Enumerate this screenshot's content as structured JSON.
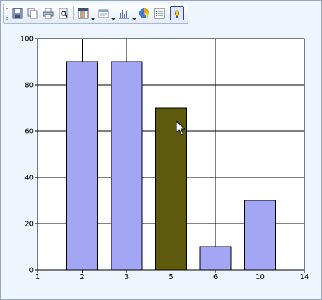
{
  "toolbar": {
    "buttons": [
      {
        "name": "save-icon",
        "dropdown": false
      },
      {
        "name": "copy-icon",
        "dropdown": false
      },
      {
        "name": "print-icon",
        "dropdown": false
      },
      {
        "name": "print-preview-icon",
        "dropdown": false
      },
      {
        "name": "data-grid-icon",
        "dropdown": true
      },
      {
        "name": "border-style-icon",
        "dropdown": true
      },
      {
        "name": "chart-type-icon",
        "dropdown": true
      },
      {
        "name": "pie-chart-icon",
        "dropdown": false
      },
      {
        "name": "legend-icon",
        "dropdown": false
      },
      {
        "name": "pointer-icon",
        "dropdown": false,
        "active": true
      }
    ]
  },
  "colors": {
    "bar_default": "#a3a5f5",
    "bar_selected": "#5e5a0b",
    "plot_background": "#ffffff",
    "page_background": "#eef5fc"
  },
  "chart_data": {
    "type": "bar",
    "x": [
      2,
      3,
      5,
      6,
      10
    ],
    "values": [
      90,
      90,
      70,
      10,
      30
    ],
    "selected_index": 2,
    "xticks": [
      "1",
      "2",
      "3",
      "5",
      "6",
      "10",
      "14"
    ],
    "yticks": [
      "0",
      "20",
      "40",
      "60",
      "80",
      "100"
    ],
    "ylim": [
      0,
      100
    ],
    "grid": true,
    "title": "",
    "xlabel": "",
    "ylabel": ""
  }
}
